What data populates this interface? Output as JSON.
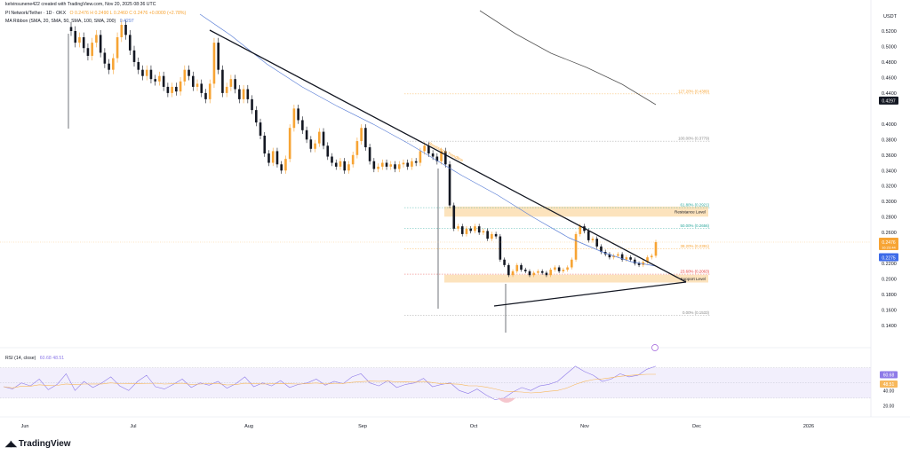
{
  "header": {
    "creator": "kelvinsunene422 created with TradingView.com, Nov 20, 2025 08:36 UTC",
    "symbol": "PI Network/Tether · 1D · OKX",
    "ohlc": "O 0.2476 H 0.2490 L 0.2460 C 0.2476 +0.0000 (+2.78%)",
    "indicator": "MA Ribbon (SMA, 20, SMA, 50, SMA, 100, SMA, 200)",
    "indicator_value": "0.4297",
    "rsi_label": "RSI (14, close)",
    "rsi_values": "60.68  48.51"
  },
  "footer": {
    "brand": "TradingView"
  },
  "colors": {
    "up": "#f7a434",
    "down": "#131722",
    "ma50": "#5b7fd6",
    "ma200": "#555555",
    "trend": "#131722",
    "zone": "#fbd9a7",
    "rsi": "#8e7ae8",
    "rsi_ma": "#f7b85c",
    "rsi_band": "#ece8fb",
    "rsi_bear": "#f2b8c0",
    "last_price": "#f7a434",
    "ma_price": "#3d6be8"
  },
  "chart_data": {
    "type": "candlestick",
    "currency": "USDT",
    "y_axis_ticks": [
      "0.5200",
      "0.5000",
      "0.4800",
      "0.4600",
      "0.4400",
      "0.4297",
      "0.4000",
      "0.3800",
      "0.3600",
      "0.3400",
      "0.3200",
      "0.3000",
      "0.2800",
      "0.2600",
      "0.2476",
      "0.2275",
      "0.2200",
      "0.2000",
      "0.1800",
      "0.1600",
      "0.1400"
    ],
    "x_axis_ticks": [
      "Jun",
      "Jul",
      "Aug",
      "Sep",
      "Oct",
      "Nov",
      "Dec",
      "2026"
    ],
    "price_labels": {
      "last": "0.2476",
      "last_sub": "16:23:44",
      "ma": "0.2275",
      "ma200": "0.4297"
    },
    "fibonacci": [
      {
        "label": "127.20% (0.4389)",
        "price": 0.4389,
        "color": "#f7a434"
      },
      {
        "label": "100.00% (0.3779)",
        "price": 0.3779,
        "color": "#888888"
      },
      {
        "label": "61.80% (0.2921)",
        "price": 0.2921,
        "color": "#26a69a"
      },
      {
        "label": "50.00% (0.2656)",
        "price": 0.2656,
        "color": "#26a69a"
      },
      {
        "label": "38.20% (0.2391)",
        "price": 0.2391,
        "color": "#f7a434"
      },
      {
        "label": "23.60% (0.2063)",
        "price": 0.2063,
        "color": "#e53935"
      },
      {
        "label": "0.00% (0.1533)",
        "price": 0.1533,
        "color": "#888888"
      }
    ],
    "zones": [
      {
        "label": "Resistance Level",
        "top": 0.2935,
        "bottom": 0.2805
      },
      {
        "label": "Support Level",
        "top": 0.2055,
        "bottom": 0.1955
      }
    ],
    "trend_label": "Resistance Trendline",
    "rsi_ticks": [
      "60.68",
      "48.51",
      "40.00",
      "20.00"
    ],
    "candles_close": [
      0.52,
      0.505,
      0.512,
      0.498,
      0.488,
      0.505,
      0.515,
      0.492,
      0.478,
      0.47,
      0.485,
      0.512,
      0.528,
      0.515,
      0.495,
      0.48,
      0.47,
      0.462,
      0.47,
      0.458,
      0.455,
      0.462,
      0.448,
      0.44,
      0.448,
      0.442,
      0.455,
      0.47,
      0.462,
      0.448,
      0.452,
      0.44,
      0.432,
      0.452,
      0.505,
      0.47,
      0.44,
      0.448,
      0.458,
      0.445,
      0.432,
      0.445,
      0.432,
      0.418,
      0.402,
      0.385,
      0.362,
      0.35,
      0.365,
      0.348,
      0.34,
      0.355,
      0.395,
      0.42,
      0.405,
      0.392,
      0.38,
      0.368,
      0.375,
      0.39,
      0.372,
      0.358,
      0.35,
      0.345,
      0.352,
      0.34,
      0.348,
      0.36,
      0.378,
      0.395,
      0.37,
      0.352,
      0.342,
      0.345,
      0.35,
      0.345,
      0.348,
      0.342,
      0.348,
      0.35,
      0.345,
      0.352,
      0.35,
      0.365,
      0.372,
      0.362,
      0.358,
      0.352,
      0.365,
      0.348,
      0.295,
      0.265,
      0.268,
      0.258,
      0.265,
      0.262,
      0.268,
      0.26,
      0.262,
      0.252,
      0.258,
      0.255,
      0.225,
      0.218,
      0.205,
      0.21,
      0.218,
      0.212,
      0.21,
      0.205,
      0.208,
      0.21,
      0.208,
      0.205,
      0.212,
      0.215,
      0.21,
      0.212,
      0.215,
      0.225,
      0.258,
      0.268,
      0.262,
      0.25,
      0.252,
      0.242,
      0.235,
      0.232,
      0.228,
      0.23,
      0.232,
      0.225,
      0.228,
      0.225,
      0.22,
      0.218,
      0.222,
      0.228,
      0.23,
      0.2476
    ]
  }
}
